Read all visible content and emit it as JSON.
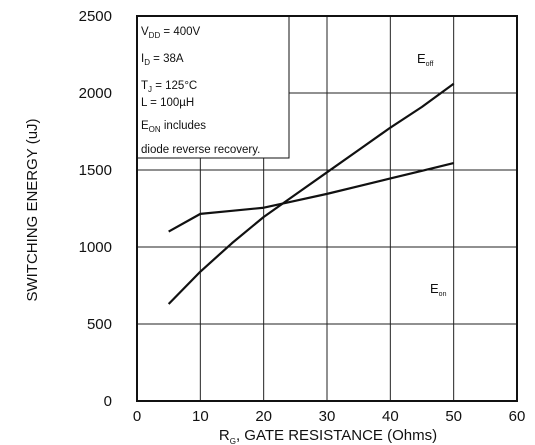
{
  "chart_data": {
    "type": "line",
    "xlabel": {
      "main": "R",
      "sub": "G",
      "rest": ", GATE RESISTANCE (Ohms)"
    },
    "ylabel": "SWITCHING ENERGY (uJ)",
    "xlim": [
      0,
      60
    ],
    "ylim": [
      0,
      2500
    ],
    "xticks": [
      "0",
      "10",
      "20",
      "30",
      "40",
      "50",
      "60"
    ],
    "yticks": [
      "0",
      "500",
      "1000",
      "1500",
      "2000",
      "2500"
    ],
    "grid": true,
    "series": [
      {
        "name": "Eoff",
        "label_main": "E",
        "label_sub": "off",
        "x": [
          5,
          10,
          15,
          20,
          25,
          30,
          35,
          40,
          45,
          50
        ],
        "y": [
          630,
          840,
          1025,
          1195,
          1340,
          1485,
          1630,
          1775,
          1910,
          2060
        ]
      },
      {
        "name": "Eon",
        "label_main": "E",
        "label_sub": "on",
        "x": [
          5,
          10,
          15,
          20,
          25,
          30,
          35,
          40,
          45,
          50
        ],
        "y": [
          1100,
          1215,
          1235,
          1255,
          1300,
          1345,
          1395,
          1445,
          1495,
          1545
        ]
      }
    ],
    "conditions": [
      {
        "main": "V",
        "sub": "DD",
        "rest": " = 400V"
      },
      {
        "main": "I",
        "sub": "D",
        "rest": " = 38A"
      },
      {
        "main": "T",
        "sub": "J",
        "rest": " = 125°C"
      },
      {
        "main": "L = 100µH",
        "sub": "",
        "rest": ""
      },
      {
        "main": "E",
        "sub": "ON",
        "rest": " includes"
      },
      {
        "main": "diode reverse recovery.",
        "sub": "",
        "rest": ""
      }
    ]
  }
}
